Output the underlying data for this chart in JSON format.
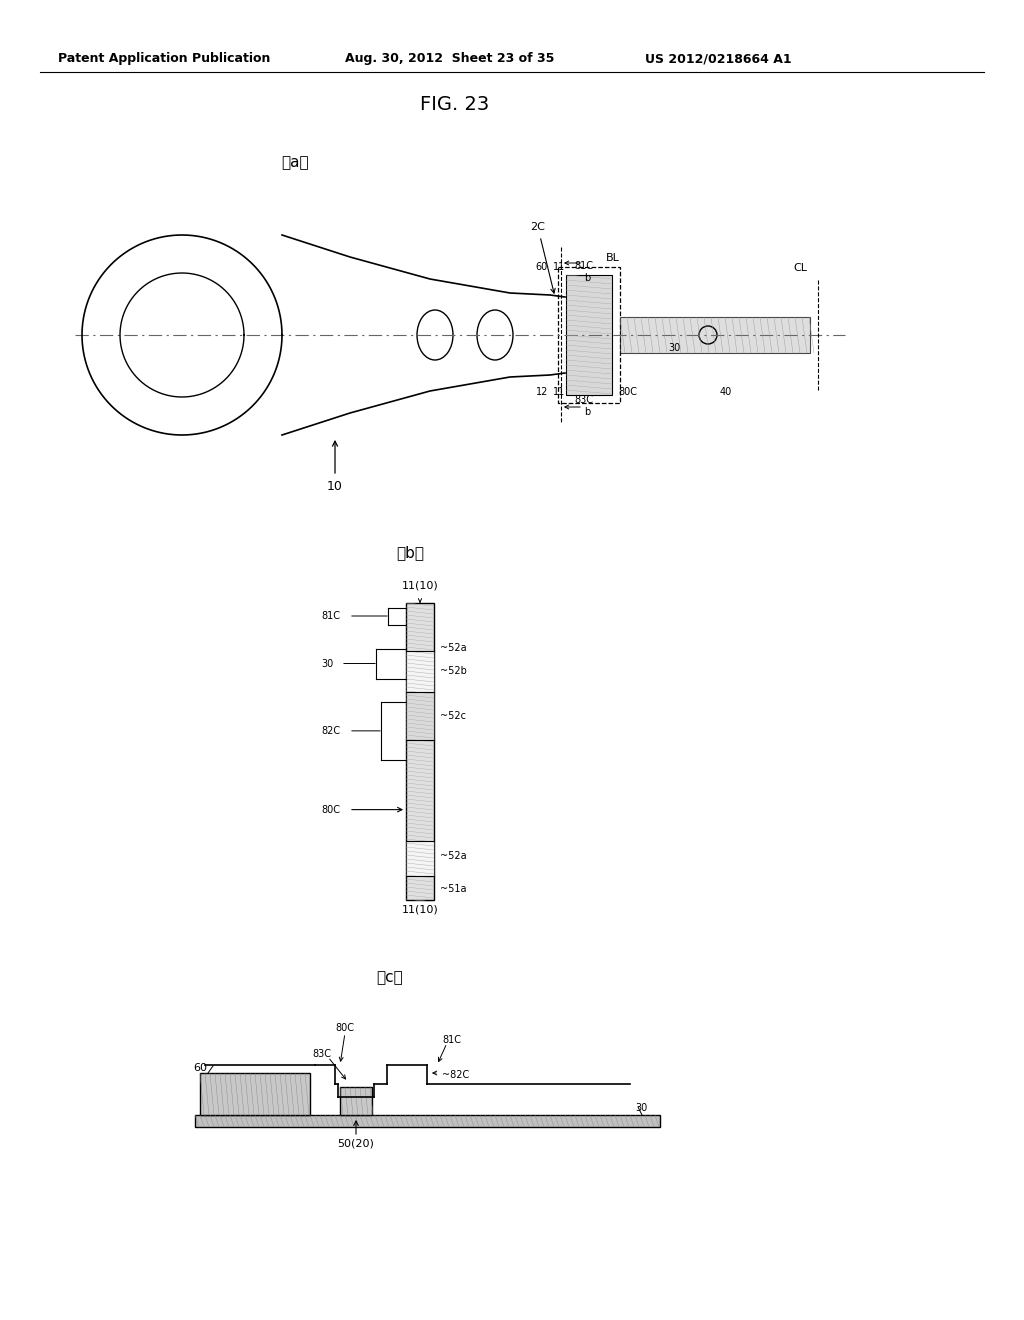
{
  "bg_color": "#ffffff",
  "header_left": "Patent Application Publication",
  "header_mid": "Aug. 30, 2012  Sheet 23 of 35",
  "header_right": "US 2012/0218664 A1",
  "fig_title": "FIG. 23",
  "sub_a": "〈a〉",
  "sub_b": "〈b〉",
  "sub_c": "〈c〉",
  "line_color": "#000000",
  "hatch_color": "#888888",
  "fill_light": "#e8e8e8"
}
